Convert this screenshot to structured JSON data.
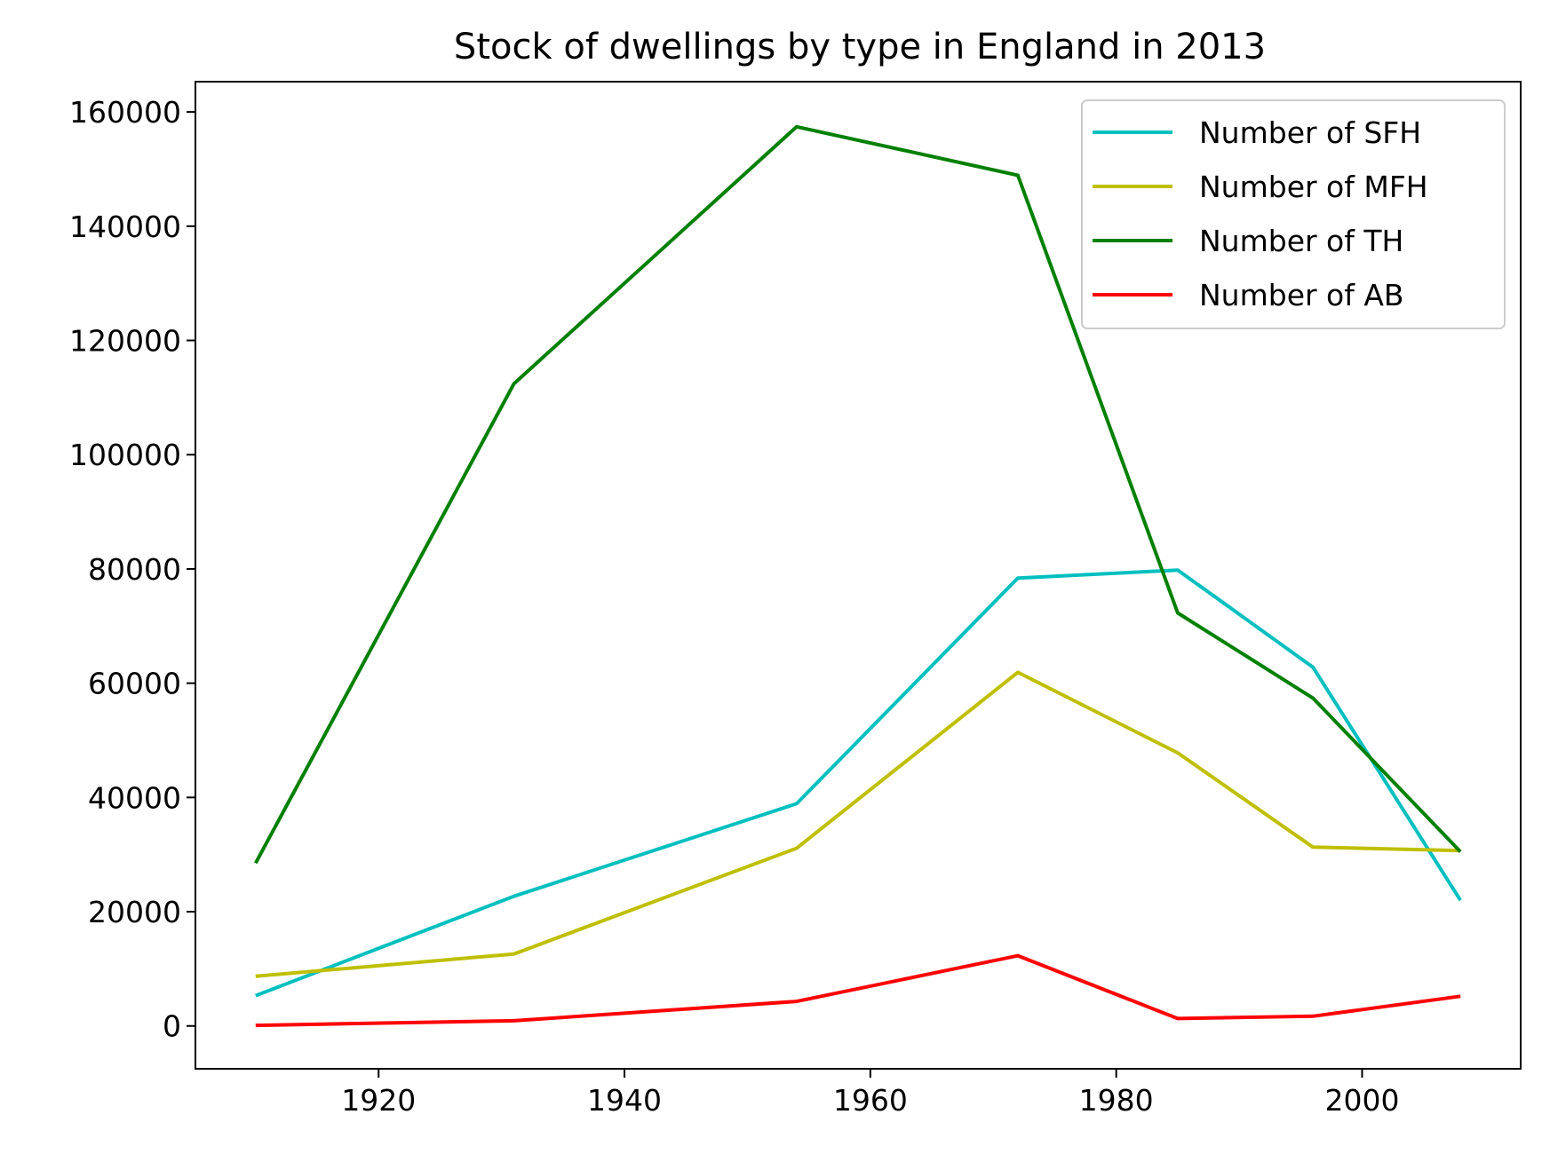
{
  "chart_data": {
    "type": "line",
    "title": "Stock of dwellings by type in England in 2013",
    "xlabel": "",
    "ylabel": "",
    "x": [
      1910,
      1931,
      1954,
      1972,
      1985,
      1996,
      2008
    ],
    "series": [
      {
        "name": "Number of SFH",
        "color": "#00bfbf",
        "values": [
          5300,
          22700,
          38900,
          78400,
          79800,
          62800,
          22000
        ]
      },
      {
        "name": "Number of MFH",
        "color": "#bfbf00",
        "values": [
          8700,
          12600,
          31100,
          61900,
          47800,
          31300,
          30700
        ]
      },
      {
        "name": "Number of TH",
        "color": "#008000",
        "values": [
          28500,
          112400,
          157400,
          148900,
          72300,
          57400,
          30500
        ]
      },
      {
        "name": "Number of AB",
        "color": "#ff0000",
        "values": [
          100,
          900,
          4300,
          12300,
          1300,
          1700,
          5200
        ]
      }
    ],
    "xlim": [
      1905.1,
      2012.9
    ],
    "ylim": [
      -7500,
      165300
    ],
    "xticks": [
      1920,
      1940,
      1960,
      1980,
      2000
    ],
    "yticks": [
      0,
      20000,
      40000,
      60000,
      80000,
      100000,
      120000,
      140000,
      160000
    ],
    "grid": false,
    "legend_position": "upper right"
  }
}
